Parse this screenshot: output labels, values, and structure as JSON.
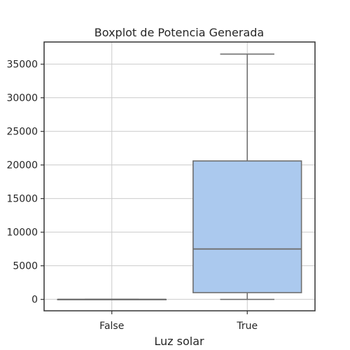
{
  "chart_data": {
    "type": "boxplot",
    "title": "Boxplot de Potencia Generada",
    "xlabel": "Luz solar",
    "ylabel": "",
    "categories": [
      "False",
      "True"
    ],
    "ylim": [
      -1700,
      38300
    ],
    "yticks": [
      0,
      5000,
      10000,
      15000,
      20000,
      25000,
      30000,
      35000
    ],
    "grid": true,
    "box_color": "#abc9ee",
    "line_color": "#707070",
    "boxes": [
      {
        "category": "False",
        "whislo": 0,
        "q1": 0,
        "median": 0,
        "q3": 0,
        "whishi": 0
      },
      {
        "category": "True",
        "whislo": 0,
        "q1": 1000,
        "median": 7500,
        "q3": 20600,
        "whishi": 36500
      }
    ]
  }
}
